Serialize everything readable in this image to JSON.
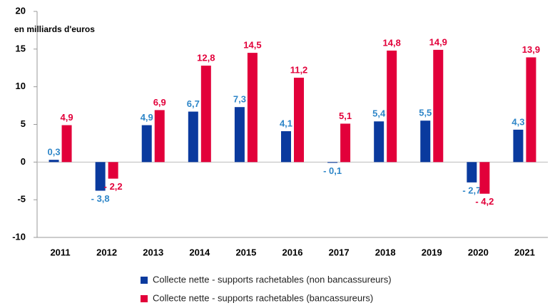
{
  "chart_data": {
    "type": "bar",
    "y_axis_label": "en milliards d'euros",
    "categories": [
      "2011",
      "2012",
      "2013",
      "2014",
      "2015",
      "2016",
      "2017",
      "2018",
      "2019",
      "2020",
      "2021"
    ],
    "series": [
      {
        "name": "Collecte nette - supports rachetables (non bancassureurs)",
        "color": "#0a3a9e",
        "label_color": "#2e86c8",
        "values": [
          0.3,
          -3.8,
          4.9,
          6.7,
          7.3,
          4.1,
          -0.1,
          5.4,
          5.5,
          -2.7,
          4.3
        ],
        "value_labels": [
          "0,3",
          "- 3,8",
          "4,9",
          "6,7",
          "7,3",
          "4,1",
          "- 0,1",
          "5,4",
          "5,5",
          "- 2,7",
          "4,3"
        ]
      },
      {
        "name": "Collecte nette - supports rachetables (bancassureurs)",
        "color": "#e2003a",
        "label_color": "#e2003a",
        "values": [
          4.9,
          -2.2,
          6.9,
          12.8,
          14.5,
          11.2,
          5.1,
          14.8,
          14.9,
          -4.2,
          13.9
        ],
        "value_labels": [
          "4,9",
          "- 2,2",
          "6,9",
          "12,8",
          "14,5",
          "11,2",
          "5,1",
          "14,8",
          "14,9",
          "- 4,2",
          "13,9"
        ]
      }
    ],
    "ylim": [
      -10,
      20
    ],
    "yticks": [
      -10,
      -5,
      0,
      5,
      10,
      15,
      20
    ],
    "grid": false,
    "legend": "bottom"
  }
}
